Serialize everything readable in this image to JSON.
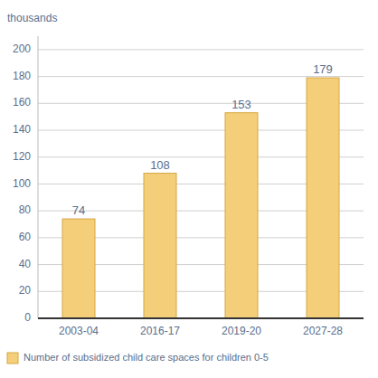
{
  "chart_data": {
    "type": "bar",
    "ylabel": "thousands",
    "categories": [
      "2003-04",
      "2016-17",
      "2019-20",
      "2027-28"
    ],
    "series": [
      {
        "name": "Number of subsidized child care spaces for children 0-5",
        "color": "#F5CE7A",
        "values": [
          74,
          108,
          153,
          179
        ]
      }
    ],
    "ylim": [
      0,
      210
    ],
    "yticks": [
      0,
      20,
      40,
      60,
      80,
      100,
      120,
      140,
      160,
      180,
      200
    ],
    "grid": true,
    "data_labels": true,
    "legend": "bottom"
  }
}
